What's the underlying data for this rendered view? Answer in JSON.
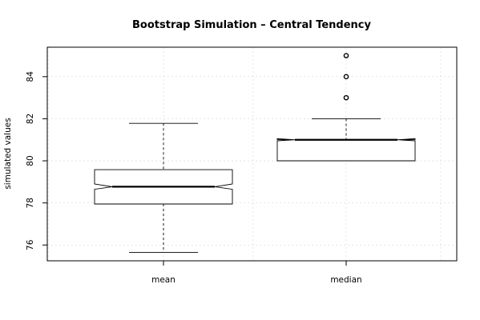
{
  "chart_data": {
    "type": "boxplot",
    "title": "Bootstrap Simulation – Central Tendency",
    "xlabel": "",
    "ylabel": "simulated values",
    "ylim": [
      75.25,
      85.4
    ],
    "yticks": [
      76,
      78,
      80,
      82,
      84
    ],
    "grid": true,
    "notched": true,
    "categories": [
      "mean",
      "median"
    ],
    "boxes": [
      {
        "name": "mean",
        "whisker_low": 75.65,
        "q1": 77.95,
        "median": 78.77,
        "q3": 79.58,
        "whisker_high": 81.78,
        "notch_low": 78.65,
        "notch_high": 78.9,
        "outliers": []
      },
      {
        "name": "median",
        "whisker_low": 80,
        "q1": 80,
        "median": 81,
        "q3": 81,
        "whisker_high": 82,
        "notch_low": 80.95,
        "notch_high": 81.05,
        "outliers": [
          83,
          84,
          85
        ]
      }
    ]
  }
}
